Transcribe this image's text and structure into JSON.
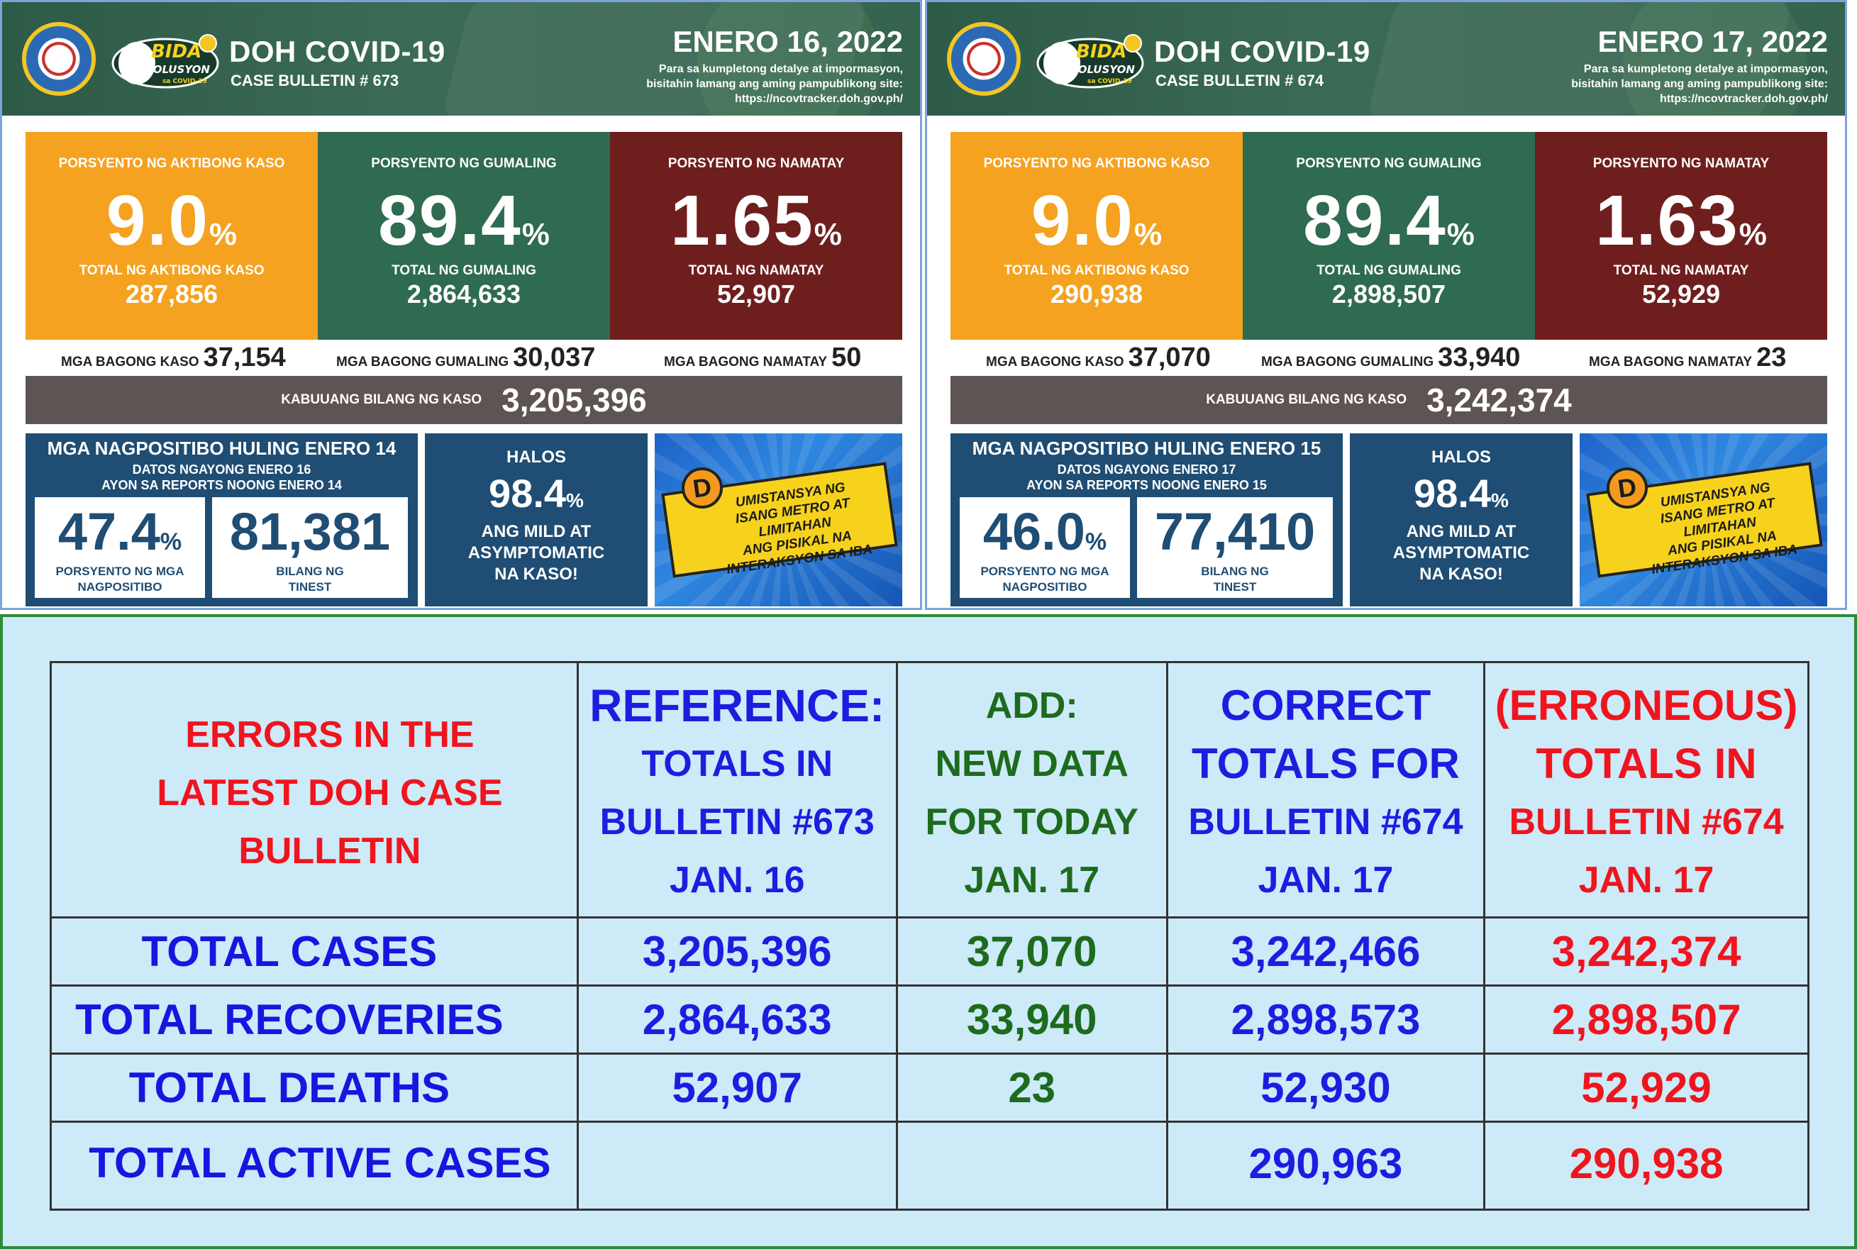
{
  "bulletins": [
    {
      "title": "DOH COVID-19",
      "case_bulletin": "CASE BULLETIN # 673",
      "date": "ENERO 16, 2022",
      "note_lines": [
        "Para sa kumpletong detalye at impormasyon,",
        "bisitahin lamang ang aming pampublikong site:",
        "https://ncovtracker.doh.gov.ph/"
      ],
      "logo_text": [
        "BIDA",
        "SOLUSYON",
        "sa COVID-19"
      ],
      "active": {
        "label": "PORSYENTO NG AKTIBONG KASO",
        "pct": "9.0",
        "pct_sign": "%",
        "total_label": "TOTAL NG AKTIBONG KASO",
        "total": "287,856"
      },
      "recovered": {
        "label": "PORSYENTO NG GUMALING",
        "pct": "89.4",
        "pct_sign": "%",
        "total_label": "TOTAL NG GUMALING",
        "total": "2,864,633"
      },
      "deaths": {
        "label": "PORSYENTO NG NAMATAY",
        "pct": "1.65",
        "pct_sign": "%",
        "total_label": "TOTAL NG NAMATAY",
        "total": "52,907"
      },
      "new_cases": {
        "label": "MGA BAGONG KASO",
        "value": "37,154"
      },
      "new_recoveries": {
        "label": "MGA BAGONG GUMALING",
        "value": "30,037"
      },
      "new_deaths": {
        "label": "MGA BAGONG NAMATAY",
        "value": "50"
      },
      "total_cases": {
        "label": "KABUUANG BILANG NG KASO",
        "value": "3,205,396"
      },
      "positivity": {
        "heading": "MGA NAGPOSITIBO HULING ENERO 14",
        "sub1": "DATOS NGAYONG ENERO 16",
        "sub2": "AYON SA REPORTS NOONG ENERO 14",
        "pct": "47.4",
        "pct_sign": "%",
        "pct_label1": "PORSYENTO NG MGA",
        "pct_label2": "NAGPOSITIBO",
        "tested": "81,381",
        "tested_label1": "BILANG NG",
        "tested_label2": "TINEST"
      },
      "mild": {
        "heading": "HALOS",
        "pct": "98.4",
        "pct_sign": "%",
        "line1": "ANG MILD AT",
        "line2": "ASYMPTOMATIC",
        "line3": "NA KASO!"
      },
      "dbox": {
        "letter": "D",
        "line1": "UMISTANSYA NG",
        "line2": "ISANG METRO AT LIMITAHAN",
        "line3": "ANG PISIKAL NA",
        "line4": "INTERAKSYON SA IBA"
      }
    },
    {
      "title": "DOH COVID-19",
      "case_bulletin": "CASE BULLETIN # 674",
      "date": "ENERO 17, 2022",
      "note_lines": [
        "Para sa kumpletong detalye at impormasyon,",
        "bisitahin lamang ang aming pampublikong site:",
        "https://ncovtracker.doh.gov.ph/"
      ],
      "logo_text": [
        "BIDA",
        "SOLUSYON",
        "sa COVID-19"
      ],
      "active": {
        "label": "PORSYENTO NG AKTIBONG KASO",
        "pct": "9.0",
        "pct_sign": "%",
        "total_label": "TOTAL NG AKTIBONG KASO",
        "total": "290,938"
      },
      "recovered": {
        "label": "PORSYENTO NG GUMALING",
        "pct": "89.4",
        "pct_sign": "%",
        "total_label": "TOTAL NG GUMALING",
        "total": "2,898,507"
      },
      "deaths": {
        "label": "PORSYENTO NG NAMATAY",
        "pct": "1.63",
        "pct_sign": "%",
        "total_label": "TOTAL NG NAMATAY",
        "total": "52,929"
      },
      "new_cases": {
        "label": "MGA BAGONG KASO",
        "value": "37,070"
      },
      "new_recoveries": {
        "label": "MGA BAGONG GUMALING",
        "value": "33,940"
      },
      "new_deaths": {
        "label": "MGA BAGONG NAMATAY",
        "value": "23"
      },
      "total_cases": {
        "label": "KABUUANG BILANG NG KASO",
        "value": "3,242,374"
      },
      "positivity": {
        "heading": "MGA NAGPOSITIBO HULING ENERO 15",
        "sub1": "DATOS NGAYONG ENERO 17",
        "sub2": "AYON SA REPORTS NOONG ENERO 15",
        "pct": "46.0",
        "pct_sign": "%",
        "pct_label1": "PORSYENTO NG MGA",
        "pct_label2": "NAGPOSITIBO",
        "tested": "77,410",
        "tested_label1": "BILANG NG",
        "tested_label2": "TINEST"
      },
      "mild": {
        "heading": "HALOS",
        "pct": "98.4",
        "pct_sign": "%",
        "line1": "ANG MILD AT",
        "line2": "ASYMPTOMATIC",
        "line3": "NA KASO!"
      },
      "dbox": {
        "letter": "D",
        "line1": "UMISTANSYA NG",
        "line2": "ISANG METRO AT LIMITAHAN",
        "line3": "ANG PISIKAL NA",
        "line4": "INTERAKSYON SA IBA"
      }
    }
  ],
  "errors_table": {
    "title_lines": [
      "ERRORS  IN THE",
      "LATEST DOH CASE",
      "BULLETIN"
    ],
    "col_reference": [
      "REFERENCE:",
      "TOTALS IN",
      "BULLETIN #673",
      "JAN. 16"
    ],
    "col_add": [
      "ADD:",
      "NEW DATA",
      "FOR TODAY",
      "JAN. 17"
    ],
    "col_correct": [
      "CORRECT",
      "TOTALS FOR",
      "BULLETIN #674",
      "JAN. 17"
    ],
    "col_erroneous": [
      "(ERRONEOUS)",
      "TOTALS IN",
      "BULLETIN #674",
      "JAN. 17"
    ],
    "rows": [
      {
        "label": "TOTAL CASES",
        "reference": "3,205,396",
        "add": "37,070",
        "correct": "3,242,466",
        "erroneous": "3,242,374"
      },
      {
        "label": "TOTAL RECOVERIES",
        "reference": "2,864,633",
        "add": "33,940",
        "correct": "2,898,573",
        "erroneous": "2,898,507"
      },
      {
        "label": "TOTAL DEATHS",
        "reference": "52,907",
        "add": "23",
        "correct": "52,930",
        "erroneous": "52,929"
      },
      {
        "label": "TOTAL ACTIVE CASES",
        "reference": "",
        "add": "",
        "correct": "290,963",
        "erroneous": "290,938"
      }
    ]
  },
  "colors": {
    "header_green": "#3b6b55",
    "active_orange": "#f4a21f",
    "recovered_green": "#2e6b51",
    "deaths_maroon": "#6f1e1e",
    "total_bar": "#5e5453",
    "info_blue": "#1f4d73",
    "error_red": "#f0141e",
    "reference_blue": "#1b1ee0",
    "add_green": "#1d6b1d",
    "table_bg": "#cdeaf8"
  }
}
